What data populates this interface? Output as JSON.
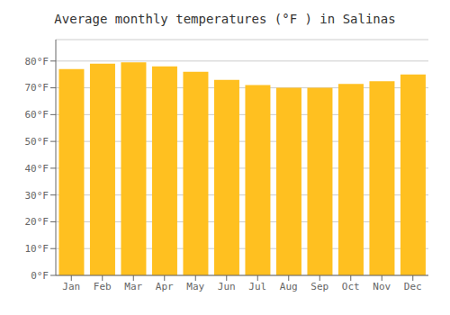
{
  "chart_data": {
    "type": "bar",
    "title": "Average monthly temperatures (°F ) in Salinas",
    "categories": [
      "Jan",
      "Feb",
      "Mar",
      "Apr",
      "May",
      "Jun",
      "Jul",
      "Aug",
      "Sep",
      "Oct",
      "Nov",
      "Dec"
    ],
    "values": [
      77,
      79,
      79.5,
      78,
      76,
      73,
      71,
      70,
      70,
      71.5,
      72.5,
      75
    ],
    "color": "#FFC020",
    "ylim": [
      0,
      88
    ],
    "yticks": [
      {
        "value": 0,
        "label": "0°F"
      },
      {
        "value": 10,
        "label": "10°F"
      },
      {
        "value": 20,
        "label": "20°F"
      },
      {
        "value": 30,
        "label": "30°F"
      },
      {
        "value": 40,
        "label": "40°F"
      },
      {
        "value": 50,
        "label": "50°F"
      },
      {
        "value": 60,
        "label": "60°F"
      },
      {
        "value": 70,
        "label": "70°F"
      },
      {
        "value": 80,
        "label": "80°F"
      }
    ],
    "grid": true
  }
}
